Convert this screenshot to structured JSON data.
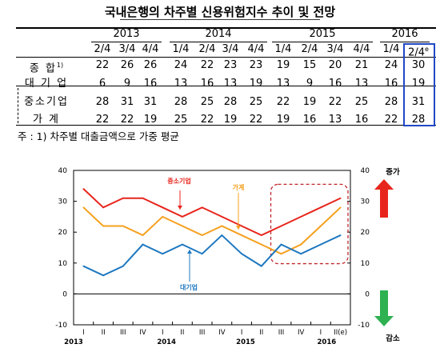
{
  "title": "국내은행의 차주별 신용위험지수 추이 및 전망",
  "table": {
    "years": [
      "2013",
      "2014",
      "2015",
      "2016"
    ],
    "quarters": [
      "2/4",
      "3/4",
      "4/4",
      "1/4",
      "2/4",
      "3/4",
      "4/4",
      "1/4",
      "2/4",
      "3/4",
      "4/4",
      "1/4",
      "2/4"
    ],
    "last_quarter_mark": "e",
    "rows": [
      {
        "label": "종 합",
        "sup": "1)",
        "values": [
          22,
          26,
          26,
          24,
          22,
          23,
          23,
          19,
          15,
          20,
          21,
          24,
          30
        ]
      },
      {
        "label": "대 기 업",
        "sup": "",
        "values": [
          6,
          9,
          16,
          13,
          16,
          13,
          19,
          13,
          9,
          16,
          13,
          16,
          19
        ]
      },
      {
        "label": "중소기업",
        "sup": "",
        "values": [
          28,
          31,
          31,
          28,
          25,
          28,
          25,
          22,
          19,
          22,
          25,
          28,
          31
        ]
      },
      {
        "label": "가 계",
        "sup": "",
        "values": [
          22,
          22,
          19,
          25,
          22,
          19,
          22,
          19,
          16,
          13,
          16,
          22,
          28
        ]
      }
    ]
  },
  "note": "주 : 1) 차주별 대출금액으로 가중 평균",
  "chart_data": {
    "type": "line",
    "x": [
      "I",
      "II",
      "III",
      "IV",
      "I",
      "II",
      "III",
      "IV",
      "I",
      "II",
      "III",
      "IV",
      "I",
      "II(e)"
    ],
    "year_labels": [
      "2013",
      "2014",
      "2015",
      "2016"
    ],
    "series": [
      {
        "name": "중소기업",
        "values": [
          34,
          28,
          31,
          31,
          28,
          25,
          28,
          25,
          22,
          19,
          22,
          25,
          28,
          31
        ],
        "color": "#e8251c"
      },
      {
        "name": "가계",
        "values": [
          28,
          22,
          22,
          19,
          25,
          22,
          19,
          22,
          19,
          16,
          13,
          16,
          22,
          28
        ],
        "color": "#f5a01e"
      },
      {
        "name": "대기업",
        "values": [
          9,
          6,
          9,
          16,
          13,
          16,
          13,
          19,
          13,
          9,
          16,
          13,
          16,
          19
        ],
        "color": "#1e78c0"
      }
    ],
    "ylim": [
      -10,
      40
    ],
    "yticks": [
      -10,
      0,
      10,
      20,
      30,
      40
    ],
    "right_yticks": [
      -10,
      0,
      10,
      20,
      30,
      40
    ],
    "up_label": "증가",
    "down_label": "감소",
    "grid": false,
    "highlight_range": [
      "III",
      "II(e)"
    ]
  },
  "colors": {
    "up_arrow": "#e8251c",
    "down_arrow": "#2eb151",
    "highlight_box": "#2148c4",
    "dashed_box": "#c0272d",
    "zero_line": "#000000"
  }
}
